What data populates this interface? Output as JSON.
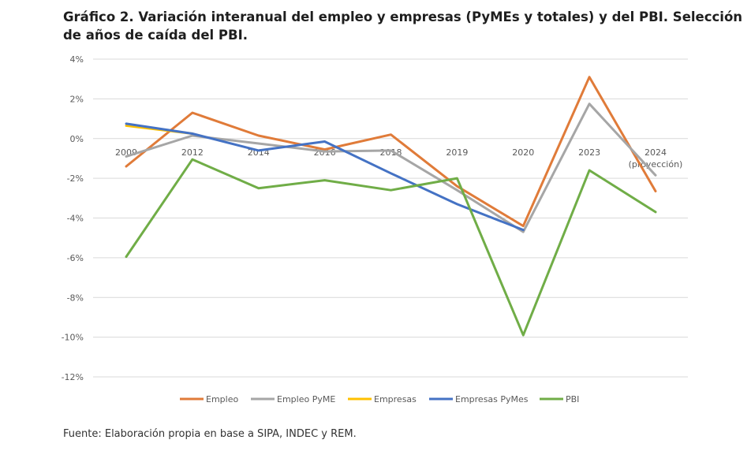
{
  "title_line1": "Gráfico 2. Variación interanual del empleo y empresas (PyMEs y totales) y del PBI. Selección",
  "title_line2": "de años de caída del PBI.",
  "source": "Fuente: Elaboración propia en base a SIPA, INDEC y REM.",
  "chart_data": {
    "type": "line",
    "categories": [
      "2009",
      "2012",
      "2014",
      "2016",
      "2018",
      "2019",
      "2020",
      "2023",
      "2024"
    ],
    "category_sublabels": [
      "",
      "",
      "",
      "",
      "",
      "",
      "",
      "",
      "(proyección)"
    ],
    "y_ticks": [
      4,
      2,
      0,
      -2,
      -4,
      -6,
      -8,
      -10,
      -12
    ],
    "y_tick_labels": [
      "4%",
      "2%",
      "0%",
      "-2%",
      "-4%",
      "-6%",
      "-8%",
      "-10%",
      "-12%"
    ],
    "ylim": [
      -12,
      4
    ],
    "grid": true,
    "legend_position": "bottom",
    "series": [
      {
        "name": "Empleo",
        "color": "#E07B39",
        "values": [
          -1.4,
          1.3,
          0.15,
          -0.55,
          0.2,
          -2.4,
          -4.4,
          3.1,
          -2.65
        ]
      },
      {
        "name": "Empleo PyME",
        "color": "#A6A6A6",
        "values": [
          -0.9,
          0.15,
          -0.25,
          -0.65,
          -0.6,
          -2.6,
          -4.7,
          1.75,
          -1.85
        ]
      },
      {
        "name": "Empresas",
        "color": "#FFC000",
        "values": [
          0.65,
          0.25,
          null,
          null,
          -1.7,
          null,
          null,
          null,
          null
        ]
      },
      {
        "name": "Empresas PyMes",
        "color": "#4472C4",
        "values": [
          0.75,
          0.25,
          -0.6,
          -0.15,
          -1.75,
          -3.3,
          -4.6,
          null,
          null
        ]
      },
      {
        "name": "PBI",
        "color": "#70AD47",
        "values": [
          -5.95,
          -1.05,
          -2.5,
          -2.1,
          -2.6,
          -2.0,
          -9.9,
          -1.6,
          -3.7
        ]
      }
    ]
  }
}
